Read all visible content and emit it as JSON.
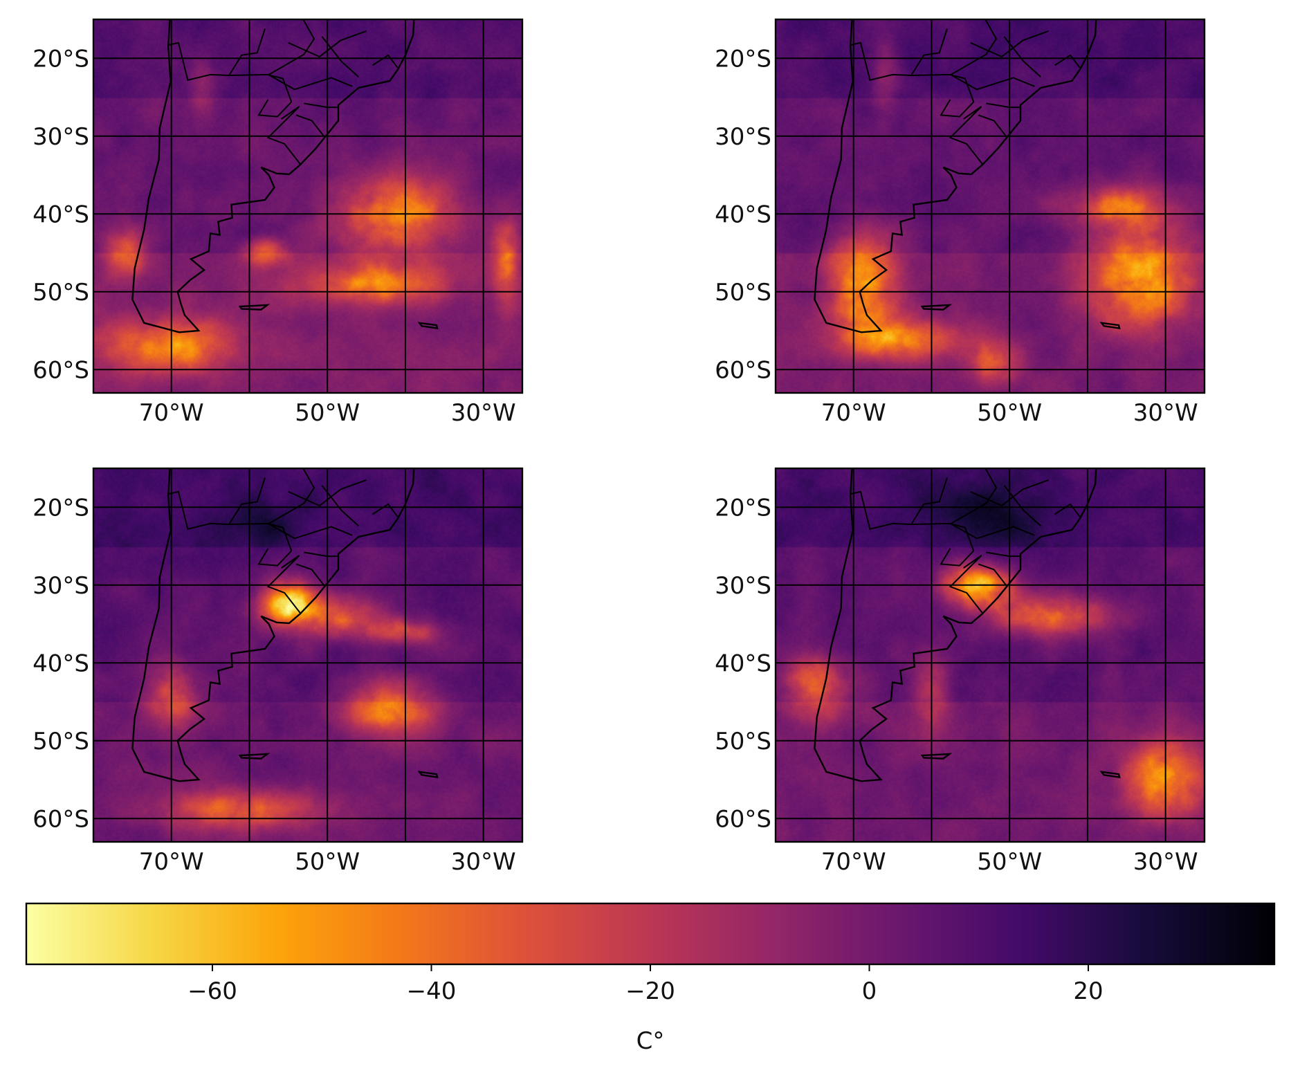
{
  "colorbar": {
    "label": "C°",
    "colormap": "inferno_r",
    "vmin": -77,
    "vmax": 37,
    "ticks": [
      -60,
      -40,
      -20,
      0,
      20
    ],
    "tick_labels": [
      "−60",
      "−40",
      "−20",
      "0",
      "20"
    ]
  },
  "map_extent": {
    "lon": [
      -80,
      -25
    ],
    "lat": [
      -63,
      -15
    ]
  },
  "gridlines": {
    "lon": [
      -70,
      -60,
      -50,
      -40,
      -30
    ],
    "lat": [
      -20,
      -30,
      -40,
      -50,
      -60
    ]
  },
  "lon_labels": [
    {
      "lon": -70,
      "text": "70°W"
    },
    {
      "lon": -50,
      "text": "50°W"
    },
    {
      "lon": -30,
      "text": "30°W"
    }
  ],
  "lat_labels": [
    {
      "lat": -20,
      "text": "20°S"
    },
    {
      "lat": -30,
      "text": "30°S"
    },
    {
      "lat": -40,
      "text": "40°S"
    },
    {
      "lat": -50,
      "text": "50°S"
    },
    {
      "lat": -60,
      "text": "60°S"
    }
  ],
  "panels": [
    {
      "name": "panel-top-left",
      "base_temp": 4,
      "cold_features": [
        {
          "lon": -41,
          "lat": -40,
          "rx": 9,
          "ry": 6,
          "t": -55
        },
        {
          "lon": -44,
          "lat": -49,
          "rx": 11,
          "ry": 3,
          "t": -45
        },
        {
          "lon": -70,
          "lat": -57,
          "rx": 10,
          "ry": 4,
          "t": -50
        },
        {
          "lon": -58,
          "lat": -45,
          "rx": 3,
          "ry": 2,
          "t": -45
        },
        {
          "lon": -76,
          "lat": -45,
          "rx": 3,
          "ry": 4,
          "t": -40
        },
        {
          "lon": -66,
          "lat": -24,
          "rx": 2,
          "ry": 5,
          "t": -12
        },
        {
          "lon": -27,
          "lat": -46,
          "rx": 2,
          "ry": 6,
          "t": -40
        }
      ]
    },
    {
      "name": "panel-top-right",
      "base_temp": 6,
      "cold_features": [
        {
          "lon": -69,
          "lat": -49,
          "rx": 5,
          "ry": 8,
          "t": -55
        },
        {
          "lon": -64,
          "lat": -56,
          "rx": 9,
          "ry": 3,
          "t": -50
        },
        {
          "lon": -33,
          "lat": -48,
          "rx": 8,
          "ry": 8,
          "t": -58
        },
        {
          "lon": -36,
          "lat": -39,
          "rx": 8,
          "ry": 3,
          "t": -40
        },
        {
          "lon": -52,
          "lat": -59,
          "rx": 4,
          "ry": 3,
          "t": -38
        },
        {
          "lon": -66,
          "lat": -22,
          "rx": 2,
          "ry": 6,
          "t": -15
        }
      ]
    },
    {
      "name": "panel-bottom-left",
      "base_temp": 8,
      "cold_features": [
        {
          "lon": -55,
          "lat": -32,
          "rx": 4,
          "ry": 3,
          "t": -70
        },
        {
          "lon": -50,
          "lat": -34,
          "rx": 8,
          "ry": 3,
          "t": -45
        },
        {
          "lon": -42,
          "lat": -46,
          "rx": 7,
          "ry": 4,
          "t": -48
        },
        {
          "lon": -61,
          "lat": -59,
          "rx": 11,
          "ry": 3,
          "t": -40
        },
        {
          "lon": -70,
          "lat": -44,
          "rx": 4,
          "ry": 5,
          "t": -35
        },
        {
          "lon": -40,
          "lat": -36,
          "rx": 6,
          "ry": 2,
          "t": -30
        },
        {
          "lon": -59,
          "lat": -22,
          "rx": 6,
          "ry": 4,
          "t": 30
        }
      ]
    },
    {
      "name": "panel-bottom-right",
      "base_temp": 7,
      "cold_features": [
        {
          "lon": -54,
          "lat": -30,
          "rx": 5,
          "ry": 3,
          "t": -70
        },
        {
          "lon": -45,
          "lat": -34,
          "rx": 9,
          "ry": 3,
          "t": -48
        },
        {
          "lon": -30,
          "lat": -55,
          "rx": 6,
          "ry": 6,
          "t": -55
        },
        {
          "lon": -75,
          "lat": -43,
          "rx": 5,
          "ry": 5,
          "t": -42
        },
        {
          "lon": -52,
          "lat": -21,
          "rx": 11,
          "ry": 5,
          "t": 32
        },
        {
          "lon": -60,
          "lat": -44,
          "rx": 3,
          "ry": 6,
          "t": -20
        }
      ]
    }
  ],
  "coastline": [
    [
      -70.2,
      -15
    ],
    [
      -70.4,
      -18.5
    ],
    [
      -70.1,
      -23
    ],
    [
      -71.5,
      -29
    ],
    [
      -71.6,
      -33
    ],
    [
      -72.9,
      -38
    ],
    [
      -73.5,
      -42
    ],
    [
      -74.7,
      -47
    ],
    [
      -75,
      -51
    ],
    [
      -73.5,
      -54
    ],
    [
      -69,
      -55.2
    ],
    [
      -66.5,
      -55
    ],
    [
      -68.3,
      -53
    ],
    [
      -68.8,
      -51.5
    ],
    [
      -69.2,
      -50
    ],
    [
      -67.6,
      -48.5
    ],
    [
      -65.8,
      -47.2
    ],
    [
      -67.5,
      -45.8
    ],
    [
      -65.2,
      -44.8
    ],
    [
      -65,
      -42.5
    ],
    [
      -63.8,
      -42.7
    ],
    [
      -64,
      -41
    ],
    [
      -62.2,
      -40.5
    ],
    [
      -62.3,
      -38.8
    ],
    [
      -58,
      -38.2
    ],
    [
      -56.8,
      -36.6
    ],
    [
      -57.5,
      -35
    ],
    [
      -58.5,
      -34
    ],
    [
      -56.5,
      -34.8
    ],
    [
      -54.9,
      -34.9
    ],
    [
      -53.5,
      -33.7
    ],
    [
      -51.5,
      -31.6
    ],
    [
      -50.2,
      -30
    ],
    [
      -48.6,
      -28
    ],
    [
      -48.6,
      -26
    ],
    [
      -46,
      -23.8
    ],
    [
      -42,
      -22.9
    ],
    [
      -41,
      -21.5
    ],
    [
      -40,
      -19.6
    ],
    [
      -39,
      -17
    ],
    [
      -38.9,
      -15
    ]
  ],
  "falklands": [
    [
      -61.2,
      -51.9
    ],
    [
      -57.7,
      -51.7
    ],
    [
      -58.5,
      -52.3
    ],
    [
      -61,
      -52.2
    ]
  ],
  "south_georgia": [
    [
      -38.2,
      -54.0
    ],
    [
      -36.0,
      -54.3
    ],
    [
      -35.9,
      -54.7
    ],
    [
      -37.9,
      -54.4
    ]
  ],
  "borders": [
    [
      [
        -70.4,
        -18.3
      ],
      [
        -69.1,
        -18
      ],
      [
        -67.9,
        -22.8
      ],
      [
        -65,
        -22.1
      ],
      [
        -62.6,
        -22.2
      ],
      [
        -57.7,
        -22.1
      ],
      [
        -55.7,
        -22.6
      ],
      [
        -54.6,
        -25.6
      ]
    ],
    [
      [
        -62.6,
        -22.2
      ],
      [
        -61,
        -19.6
      ],
      [
        -59,
        -19.3
      ],
      [
        -58,
        -16.2
      ]
    ],
    [
      [
        -57.6,
        -25.3
      ],
      [
        -58.8,
        -27.3
      ],
      [
        -56.4,
        -27.5
      ],
      [
        -54.6,
        -25.6
      ]
    ],
    [
      [
        -55.9,
        -27.8
      ],
      [
        -53.6,
        -26.2
      ],
      [
        -55.6,
        -28.2
      ],
      [
        -57.6,
        -30.2
      ],
      [
        -55.5,
        -31
      ],
      [
        -53.4,
        -33.7
      ]
    ],
    [
      [
        -50.7,
        -17.2
      ],
      [
        -48.2,
        -20.4
      ],
      [
        -46,
        -22.4
      ]
    ],
    [
      [
        -53,
        -25.8
      ],
      [
        -50,
        -26.3
      ],
      [
        -48.6,
        -26.3
      ]
    ],
    [
      [
        -57.4,
        -22.2
      ],
      [
        -54.2,
        -24
      ],
      [
        -49.5,
        -22.5
      ],
      [
        -46.8,
        -23.6
      ]
    ],
    [
      [
        -50.3,
        -30.2
      ],
      [
        -52,
        -28
      ],
      [
        -54,
        -27.3
      ]
    ],
    [
      [
        -44.2,
        -20.9
      ],
      [
        -42.2,
        -19.6
      ],
      [
        -41,
        -21.2
      ]
    ],
    [
      [
        -55,
        -18
      ],
      [
        -51,
        -19.8
      ],
      [
        -48.3,
        -17.7
      ],
      [
        -45,
        -16.5
      ]
    ],
    [
      [
        -53.1,
        -15
      ],
      [
        -51.7,
        -17.5
      ],
      [
        -53,
        -19.5
      ],
      [
        -57.5,
        -22.1
      ]
    ]
  ]
}
